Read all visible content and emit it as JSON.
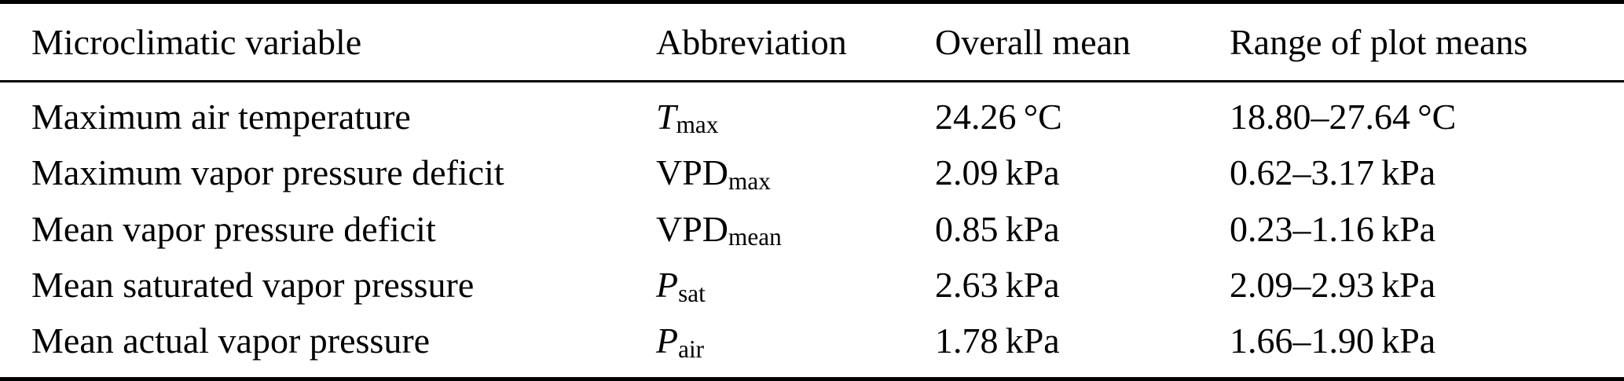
{
  "colors": {
    "text": "#000000",
    "background": "#ffffff",
    "rule": "#000000"
  },
  "table": {
    "columns": [
      "Microclimatic variable",
      "Abbreviation",
      "Overall mean",
      "Range of plot means"
    ],
    "rows": [
      {
        "variable": "Maximum air temperature",
        "abbr": {
          "base": "T",
          "sub": "max",
          "italic": true
        },
        "overall_mean": "24.26 °C",
        "range": "18.80–27.64 °C"
      },
      {
        "variable": "Maximum vapor pressure deficit",
        "abbr": {
          "base": "VPD",
          "sub": "max",
          "italic": false
        },
        "overall_mean": "2.09 kPa",
        "range": "0.62–3.17 kPa"
      },
      {
        "variable": "Mean vapor pressure deficit",
        "abbr": {
          "base": "VPD",
          "sub": "mean",
          "italic": false
        },
        "overall_mean": "0.85 kPa",
        "range": "0.23–1.16 kPa"
      },
      {
        "variable": "Mean saturated vapor pressure",
        "abbr": {
          "base": "P",
          "sub": "sat",
          "italic": true
        },
        "overall_mean": "2.63 kPa",
        "range": "2.09–2.93 kPa"
      },
      {
        "variable": "Mean actual vapor pressure",
        "abbr": {
          "base": "P",
          "sub": "air",
          "italic": true
        },
        "overall_mean": "1.78 kPa",
        "range": "1.66–1.90 kPa"
      }
    ]
  }
}
